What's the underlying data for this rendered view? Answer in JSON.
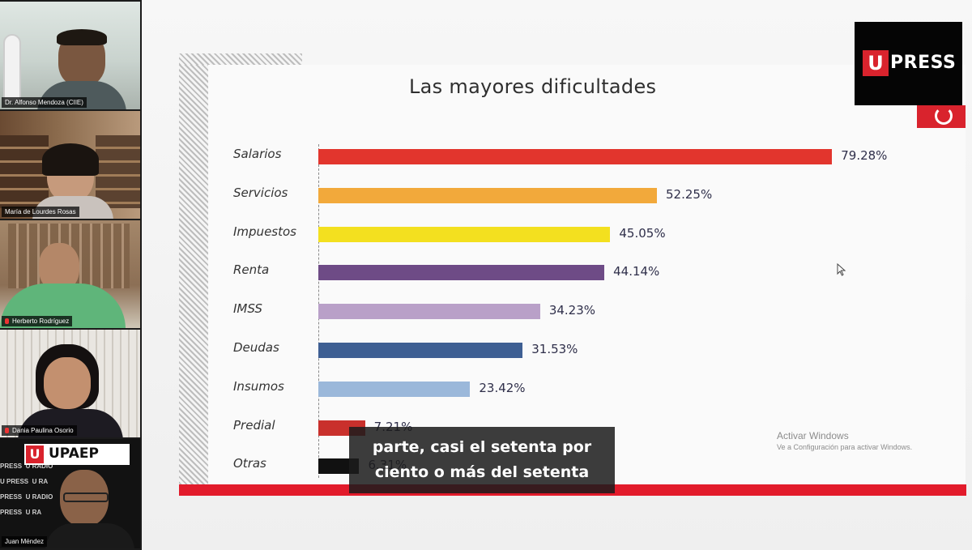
{
  "participants": [
    {
      "name": "Dr. Alfonso Mendoza (CIIE)",
      "muted": false
    },
    {
      "name": "María de Lourdes Rosas",
      "muted": false
    },
    {
      "name": "Herberto Rodríguez",
      "muted": true
    },
    {
      "name": "Dania Paulina Osorio",
      "muted": true
    },
    {
      "name": "Juan Méndez",
      "muted": false
    }
  ],
  "upaep_banner": {
    "logo_letter": "U",
    "logo_text": "UPAEP",
    "bg_words": [
      "PRESS",
      "U RADIO",
      "U PRESS",
      "U RA"
    ]
  },
  "slide": {
    "title": "Las mayores dificultades",
    "watermark_line1": "Activar Windows",
    "watermark_line2": "Ve a Configuración para activar Windows."
  },
  "brand": {
    "letter": "U",
    "text": "PRESS",
    "accent": "#d9232d"
  },
  "subtitle_lines": [
    "parte, casi el setenta por",
    "ciento o más del setenta"
  ],
  "chart_data": {
    "type": "bar",
    "orientation": "horizontal",
    "title": "Las mayores dificultades",
    "categories": [
      "Salarios",
      "Servicios",
      "Impuestos",
      "Renta",
      "IMSS",
      "Deudas",
      "Insumos",
      "Predial",
      "Otras"
    ],
    "values": [
      79.28,
      52.25,
      45.05,
      44.14,
      34.23,
      31.53,
      23.42,
      7.21,
      6.31
    ],
    "value_labels": [
      "79.28%",
      "52.25%",
      "45.05%",
      "44.14%",
      "34.23%",
      "31.53%",
      "23.42%",
      "7.21%",
      "6.31%"
    ],
    "colors": [
      "#e2352d",
      "#f2a93b",
      "#f3e01f",
      "#6e4b86",
      "#b9a0c8",
      "#3e5f93",
      "#9bb8da",
      "#c9302c",
      "#111111"
    ],
    "xlim": [
      0,
      100
    ],
    "grid": false,
    "legend": "none"
  }
}
